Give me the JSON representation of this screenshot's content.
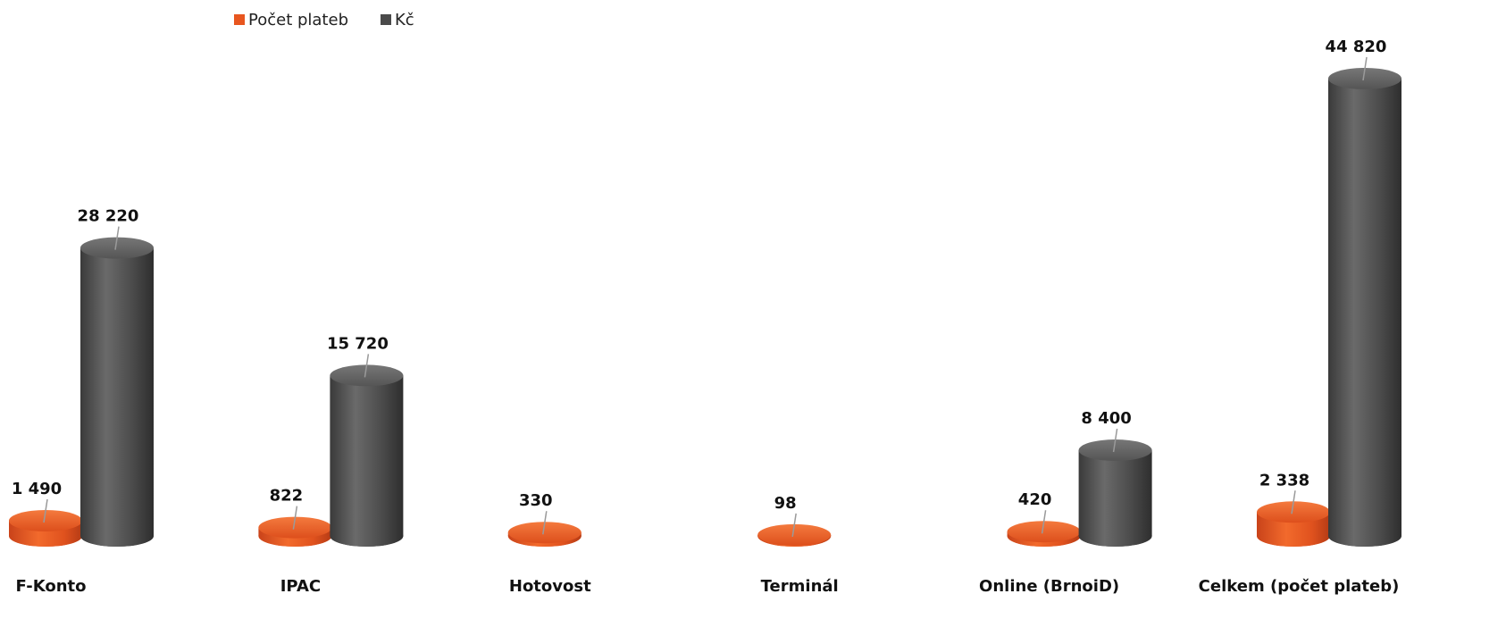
{
  "chart_data": {
    "type": "bar",
    "style": "3d-cylinder",
    "categories": [
      "F-Konto",
      "IPAC",
      "Hotovost",
      "Terminál",
      "Online (BrnoiD)",
      "Celkem (počet plateb)"
    ],
    "series": [
      {
        "name": "Počet plateb",
        "color": "#e8561f",
        "values": [
          1490,
          822,
          330,
          98,
          420,
          2338
        ],
        "labels": [
          "1 490",
          "822",
          "330",
          "98",
          "420",
          "2 338"
        ]
      },
      {
        "name": "Kč",
        "color": "#4a4a4a",
        "values": [
          28220,
          15720,
          null,
          null,
          8400,
          44820
        ],
        "labels": [
          "28 220",
          "15 720",
          null,
          null,
          "8 400",
          "44 820"
        ]
      }
    ],
    "ylim": [
      0,
      44820
    ],
    "grid": false,
    "legend_position": "top-left",
    "data_labels": true
  }
}
